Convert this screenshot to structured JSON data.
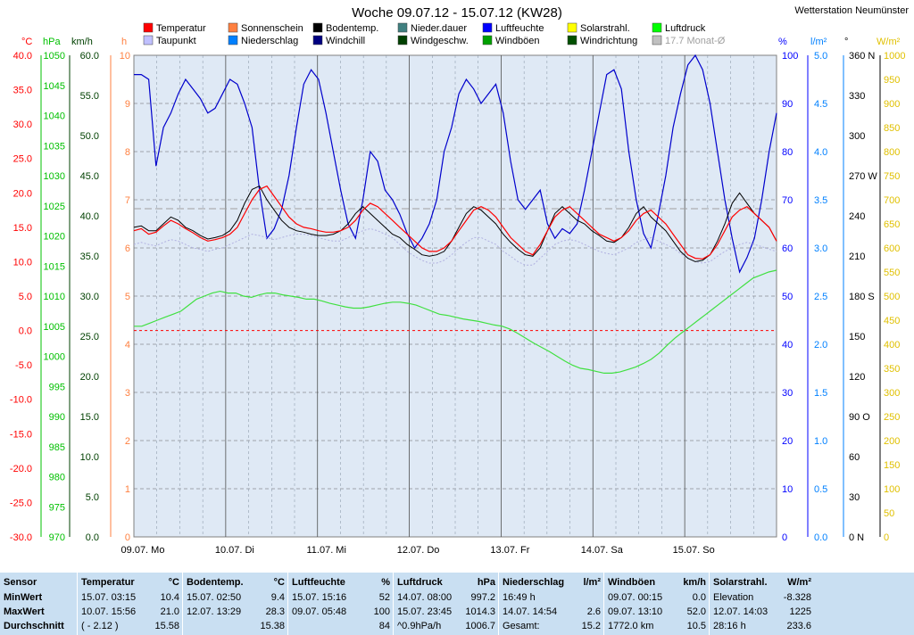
{
  "station": "Wetterstation Neumünster",
  "chart_data": {
    "type": "line",
    "title": "Woche 09.07.12 - 15.07.12 (KW28)",
    "x_labels": [
      "09.07. Mo",
      "10.07. Di",
      "11.07. Mi",
      "12.07. Do",
      "13.07. Fr",
      "14.07. Sa",
      "15.07. So"
    ],
    "legend": [
      {
        "name": "Temperatur",
        "color": "#ff0000"
      },
      {
        "name": "Sonnenschein",
        "color": "#ff8040"
      },
      {
        "name": "Bodentemp.",
        "color": "#000000"
      },
      {
        "name": "Nieder.dauer",
        "color": "#408080"
      },
      {
        "name": "Luftfeuchte",
        "color": "#0000ff"
      },
      {
        "name": "Solarstrahl.",
        "color": "#ffff00"
      },
      {
        "name": "Luftdruck",
        "color": "#00ff00"
      },
      {
        "name": "Taupunkt",
        "color": "#c0c0ff"
      },
      {
        "name": "Niederschlag",
        "color": "#0080ff"
      },
      {
        "name": "Windchill",
        "color": "#000080"
      },
      {
        "name": "Windgeschw.",
        "color": "#004000"
      },
      {
        "name": "Windböen",
        "color": "#00a000"
      },
      {
        "name": "Windrichtung",
        "color": "#005000"
      },
      {
        "name": "17.7 Monat-Ø",
        "color": "#c0c0c0"
      }
    ],
    "axes": {
      "temp": {
        "unit": "°C",
        "min": -30,
        "max": 40,
        "ticks": [
          "40.0",
          "35.0",
          "30.0",
          "25.0",
          "20.0",
          "15.0",
          "10.0",
          "5.0",
          "0.0",
          "-5.0",
          "-10.0",
          "-15.0",
          "-20.0",
          "-25.0",
          "-30.0"
        ],
        "color": "#ff0000"
      },
      "pressure": {
        "unit": "hPa",
        "min": 970,
        "max": 1050,
        "ticks": [
          "1050",
          "1045",
          "1040",
          "1035",
          "1030",
          "1025",
          "1020",
          "1015",
          "1010",
          "1005",
          "1000",
          "995",
          "990",
          "985",
          "980",
          "975",
          "970"
        ],
        "color": "#00c000"
      },
      "wind": {
        "unit": "km/h",
        "min": 0,
        "max": 60,
        "ticks": [
          "60.0",
          "55.0",
          "50.0",
          "45.0",
          "40.0",
          "35.0",
          "30.0",
          "25.0",
          "20.0",
          "15.0",
          "10.0",
          "5.0",
          "0.0"
        ],
        "color": "#004000"
      },
      "sun": {
        "unit": "h",
        "min": 0,
        "max": 10,
        "ticks": [
          "10",
          "9",
          "8",
          "7",
          "6",
          "5",
          "4",
          "3",
          "2",
          "1",
          "0"
        ],
        "color": "#ff8040"
      },
      "humidity": {
        "unit": "%",
        "min": 0,
        "max": 100,
        "ticks": [
          "100",
          "90",
          "80",
          "70",
          "60",
          "50",
          "40",
          "30",
          "20",
          "10",
          "0"
        ],
        "color": "#0000ff"
      },
      "rain": {
        "unit": "l/m²",
        "min": 0,
        "max": 5,
        "ticks": [
          "5.0",
          "4.5",
          "4.0",
          "3.5",
          "3.0",
          "2.5",
          "2.0",
          "1.5",
          "1.0",
          "0.5",
          "0.0"
        ],
        "color": "#0080ff"
      },
      "direction": {
        "unit": "°",
        "min": 0,
        "max": 360,
        "ticks": [
          "360 N",
          "330",
          "300",
          "270 W",
          "240",
          "210",
          "180 S",
          "150",
          "120",
          "90 O",
          "60",
          "30",
          "0 N"
        ],
        "color": "#000000"
      },
      "solar": {
        "unit": "W/m²",
        "min": 0,
        "max": 1000,
        "ticks": [
          "1000",
          "950",
          "900",
          "850",
          "800",
          "750",
          "700",
          "650",
          "600",
          "550",
          "500",
          "450",
          "400",
          "350",
          "300",
          "250",
          "200",
          "150",
          "100",
          "50",
          "0"
        ],
        "color": "#e0c000"
      }
    },
    "series": {
      "temperature": [
        14.5,
        14.8,
        14.0,
        14.3,
        15.2,
        16.0,
        15.5,
        14.8,
        14.2,
        13.5,
        13.0,
        13.2,
        13.5,
        14.0,
        15.0,
        17.0,
        19.0,
        20.5,
        21.0,
        19.5,
        18.0,
        16.5,
        15.5,
        15.0,
        14.8,
        14.5,
        14.3,
        14.3,
        14.5,
        15.0,
        16.0,
        17.5,
        18.5,
        18.0,
        17.0,
        16.0,
        15.0,
        14.0,
        13.0,
        12.0,
        11.5,
        11.5,
        12.0,
        13.0,
        14.5,
        16.0,
        17.5,
        18.0,
        17.5,
        16.5,
        15.0,
        13.5,
        12.5,
        11.5,
        11.0,
        12.5,
        14.5,
        16.5,
        17.5,
        18.0,
        17.0,
        16.0,
        15.0,
        14.0,
        13.5,
        13.0,
        13.5,
        14.5,
        16.0,
        17.0,
        17.5,
        16.5,
        15.5,
        14.0,
        12.5,
        11.0,
        10.5,
        10.4,
        11.0,
        12.5,
        14.5,
        16.5,
        17.5,
        18.0,
        17.0,
        16.0,
        15.0,
        13.0
      ],
      "soil_temp": [
        15.0,
        15.2,
        14.5,
        14.5,
        15.5,
        16.5,
        16.0,
        15.0,
        14.5,
        13.8,
        13.3,
        13.5,
        13.8,
        14.5,
        16.0,
        18.5,
        20.5,
        21.0,
        19.0,
        17.5,
        16.0,
        15.0,
        14.5,
        14.3,
        14.0,
        13.8,
        13.8,
        14.0,
        14.5,
        15.5,
        17.0,
        18.0,
        17.0,
        16.0,
        15.0,
        14.0,
        13.5,
        12.5,
        11.8,
        11.0,
        10.8,
        11.0,
        11.5,
        13.0,
        15.0,
        17.0,
        18.0,
        17.5,
        16.5,
        15.5,
        14.0,
        12.8,
        11.8,
        11.0,
        10.8,
        12.0,
        14.5,
        17.0,
        18.0,
        17.0,
        16.0,
        15.5,
        14.5,
        13.8,
        13.0,
        12.8,
        13.5,
        15.0,
        17.0,
        18.0,
        16.5,
        15.5,
        14.5,
        13.0,
        11.5,
        10.5,
        10.0,
        10.2,
        11.0,
        13.0,
        15.5,
        18.5,
        20.0,
        18.5,
        17.0,
        16.0,
        15.0,
        13.0
      ],
      "dewpoint": [
        12.5,
        12.8,
        12.5,
        12.3,
        12.8,
        13.2,
        13.0,
        12.5,
        12.0,
        11.8,
        11.5,
        11.8,
        12.0,
        12.5,
        13.0,
        13.5,
        14.0,
        13.8,
        13.5,
        13.2,
        13.5,
        13.8,
        14.0,
        14.0,
        13.8,
        13.5,
        13.2,
        13.0,
        13.0,
        13.5,
        14.0,
        14.5,
        14.8,
        14.5,
        14.0,
        13.5,
        12.5,
        11.5,
        10.8,
        10.2,
        9.8,
        9.8,
        10.2,
        11.0,
        12.0,
        12.8,
        13.5,
        13.5,
        13.0,
        12.5,
        11.5,
        10.8,
        10.0,
        9.5,
        9.5,
        10.5,
        11.5,
        12.5,
        13.0,
        13.2,
        13.0,
        12.5,
        12.0,
        11.5,
        11.2,
        11.0,
        11.5,
        12.0,
        12.8,
        13.2,
        13.5,
        13.0,
        12.5,
        12.0,
        11.2,
        10.5,
        10.0,
        9.8,
        10.0,
        10.8,
        11.5,
        12.0,
        12.5,
        12.8,
        12.5,
        12.2,
        11.8,
        11.5
      ],
      "humidity": [
        96,
        96,
        95,
        77,
        85,
        88,
        92,
        95,
        93,
        91,
        88,
        89,
        92,
        95,
        94,
        90,
        85,
        72,
        62,
        64,
        68,
        75,
        85,
        94,
        97,
        95,
        88,
        80,
        72,
        65,
        62,
        70,
        80,
        78,
        72,
        70,
        67,
        63,
        60,
        62,
        65,
        70,
        80,
        85,
        92,
        95,
        93,
        90,
        92,
        94,
        88,
        78,
        70,
        68,
        70,
        72,
        65,
        62,
        64,
        63,
        65,
        72,
        80,
        88,
        96,
        97,
        93,
        80,
        70,
        63,
        60,
        67,
        75,
        85,
        92,
        98,
        100,
        97,
        90,
        80,
        70,
        62,
        55,
        58,
        62,
        70,
        80,
        88
      ],
      "pressure": [
        1005,
        1005,
        1005.5,
        1006,
        1006.5,
        1007,
        1007.5,
        1008.5,
        1009.5,
        1010,
        1010.5,
        1010.8,
        1010.5,
        1010.5,
        1010,
        1009.8,
        1010.2,
        1010.5,
        1010.5,
        1010.2,
        1010,
        1009.8,
        1009.5,
        1009.5,
        1009.2,
        1008.8,
        1008.5,
        1008.2,
        1008,
        1008,
        1008.2,
        1008.5,
        1008.8,
        1009,
        1009,
        1008.8,
        1008.5,
        1008,
        1007.5,
        1007,
        1006.8,
        1006.5,
        1006.2,
        1006,
        1005.8,
        1005.5,
        1005.2,
        1005,
        1004.5,
        1003.8,
        1003,
        1002.2,
        1001.5,
        1000.8,
        1000,
        999.2,
        998.5,
        998,
        997.8,
        997.5,
        997.2,
        997.2,
        997.4,
        997.8,
        998.2,
        998.8,
        999.5,
        1000.5,
        1001.8,
        1003,
        1004,
        1005,
        1006,
        1007,
        1008,
        1009,
        1010,
        1011,
        1012,
        1013,
        1013.5,
        1014,
        1014.3
      ]
    }
  },
  "stats": [
    {
      "title": "Sensor",
      "unit": "",
      "rows": [
        [
          "MinWert",
          ""
        ],
        [
          "MaxWert",
          ""
        ],
        [
          "Durchschnitt",
          ""
        ]
      ]
    },
    {
      "title": "Temperatur",
      "unit": "°C",
      "rows": [
        [
          "15.07.  03:15",
          "10.4"
        ],
        [
          "10.07.  15:56",
          "21.0"
        ],
        [
          "( - 2.12 )",
          "15.58"
        ]
      ]
    },
    {
      "title": "Bodentemp.",
      "unit": "°C",
      "rows": [
        [
          "15.07.  02:50",
          "9.4"
        ],
        [
          "12.07.  13:29",
          "28.3"
        ],
        [
          "",
          "15.38"
        ]
      ]
    },
    {
      "title": "Luftfeuchte",
      "unit": "%",
      "rows": [
        [
          "15.07.  15:16",
          "52"
        ],
        [
          "09.07.  05:48",
          "100"
        ],
        [
          "",
          "84"
        ]
      ]
    },
    {
      "title": "Luftdruck",
      "unit": "hPa",
      "rows": [
        [
          "14.07.  08:00",
          "997.2"
        ],
        [
          "15.07.  23:45",
          "1014.3"
        ],
        [
          "^0.9hPa/h",
          "1006.7"
        ]
      ]
    },
    {
      "title": "Niederschlag",
      "unit": "l/m²",
      "rows": [
        [
          "16:49 h",
          ""
        ],
        [
          "14.07.  14:54",
          "2.6"
        ],
        [
          "Gesamt:",
          "15.2"
        ]
      ]
    },
    {
      "title": "Windböen",
      "unit": "km/h",
      "rows": [
        [
          "09.07.  00:15",
          "0.0"
        ],
        [
          "09.07.  13:10",
          "52.0"
        ],
        [
          "1772.0 km",
          "10.5"
        ]
      ]
    },
    {
      "title": "Solarstrahl.",
      "unit": "W/m²",
      "rows": [
        [
          "Elevation",
          "-8.328"
        ],
        [
          "12.07.  14:03",
          "1225"
        ],
        [
          "28:16 h",
          "233.6"
        ]
      ]
    }
  ]
}
